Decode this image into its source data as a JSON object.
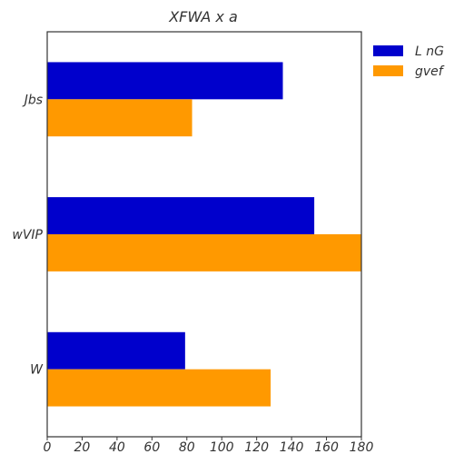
{
  "chart_data": {
    "type": "bar",
    "orientation": "horizontal",
    "title": "XFWA x a",
    "categories": [
      "Jbs",
      "wVIP",
      "W"
    ],
    "series": [
      {
        "name": "L nG",
        "color": "#0000cc",
        "values": [
          135,
          153,
          79
        ]
      },
      {
        "name": "gvef",
        "color": "#ff9900",
        "values": [
          83,
          180,
          128
        ]
      }
    ],
    "xlim": [
      0,
      180
    ],
    "xticks": [
      0,
      20,
      40,
      60,
      80,
      100,
      120,
      140,
      160,
      180
    ],
    "xlabel": "",
    "ylabel": "",
    "grid": false,
    "legend_position": "outside-top-right"
  }
}
